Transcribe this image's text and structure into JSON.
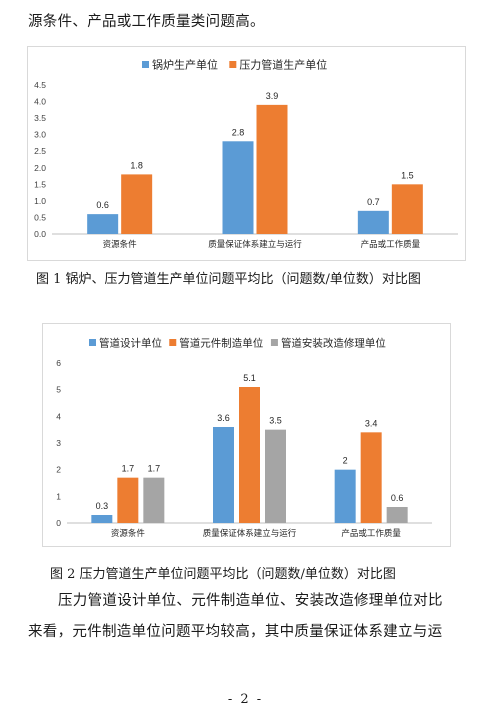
{
  "body_text": {
    "line_top": "源条件、产品或工作质量类问题高。",
    "para_line_1": "压力管道设计单位、元件制造单位、安装改造修理单位对比",
    "para_line_2": "来看，元件制造单位问题平均较高，其中质量保证体系建立与运"
  },
  "page_number": "- 2 -",
  "colors": {
    "blue": "#5b9bd5",
    "orange": "#ed7d31",
    "gray": "#a5a5a5"
  },
  "charts": [
    {
      "caption": "图 1 锅炉、压力管道生产单位问题平均比（问题数/单位数）对比图",
      "chart_data": {
        "type": "bar",
        "categories": [
          "资源条件",
          "质量保证体系建立与运行",
          "产品或工作质量"
        ],
        "series": [
          {
            "name": "锅炉生产单位",
            "values": [
              0.6,
              2.8,
              0.7
            ],
            "color": "#5b9bd5"
          },
          {
            "name": "压力管道生产单位",
            "values": [
              1.8,
              3.9,
              1.5
            ],
            "color": "#ed7d31"
          }
        ],
        "value_labels": [
          [
            "0.6",
            "2.8",
            "0.7"
          ],
          [
            "1.8",
            "3.9",
            "1.5"
          ]
        ],
        "ylim": [
          0,
          4.5
        ],
        "yticks": [
          "0.0",
          "0.5",
          "1.0",
          "1.5",
          "2.0",
          "2.5",
          "3.0",
          "3.5",
          "4.0",
          "4.5"
        ],
        "legend_position": "top",
        "grid": false
      }
    },
    {
      "caption": "图 2 压力管道生产单位问题平均比（问题数/单位数）对比图",
      "chart_data": {
        "type": "bar",
        "categories": [
          "资源条件",
          "质量保证体系建立与运行",
          "产品或工作质量"
        ],
        "series": [
          {
            "name": "管道设计单位",
            "values": [
              0.3,
              3.6,
              2
            ],
            "color": "#5b9bd5"
          },
          {
            "name": "管道元件制造单位",
            "values": [
              1.7,
              5.1,
              3.4
            ],
            "color": "#ed7d31"
          },
          {
            "name": "管道安装改造修理单位",
            "values": [
              1.7,
              3.5,
              0.6
            ],
            "color": "#a5a5a5"
          }
        ],
        "value_labels": [
          [
            "0.3",
            "3.6",
            "2"
          ],
          [
            "1.7",
            "5.1",
            "3.4"
          ],
          [
            "1.7",
            "3.5",
            "0.6"
          ]
        ],
        "ylim": [
          0,
          6
        ],
        "yticks": [
          "0",
          "1",
          "2",
          "3",
          "4",
          "5",
          "6"
        ],
        "legend_position": "top",
        "grid": false
      }
    }
  ]
}
